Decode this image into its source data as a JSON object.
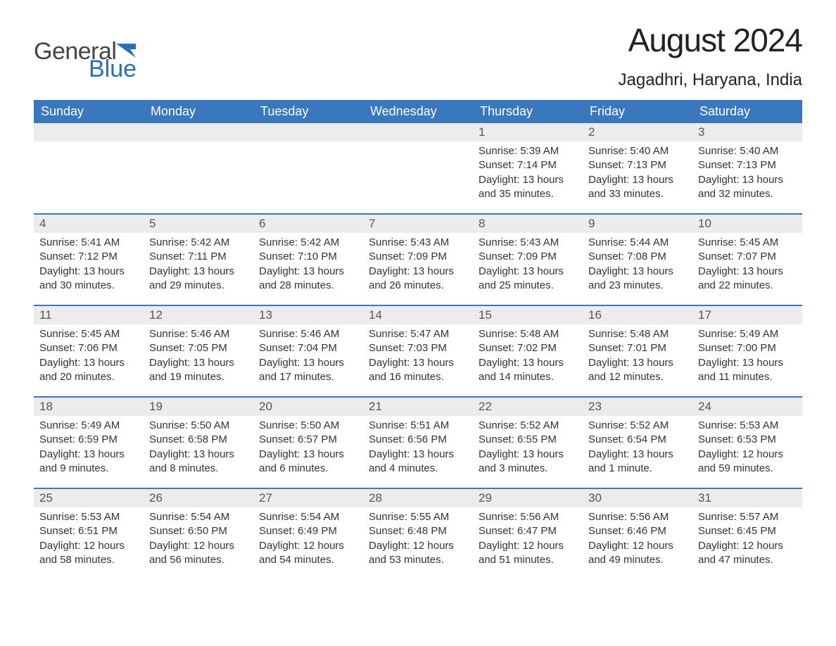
{
  "logo": {
    "text_general": "General",
    "text_blue": "Blue",
    "icon_color": "#2a6db8",
    "text_color": "#444444"
  },
  "header": {
    "month_title": "August 2024",
    "location": "Jagadhri, Haryana, India"
  },
  "colors": {
    "header_bg": "#3a78bd",
    "header_text": "#ffffff",
    "daynum_bg": "#ececec",
    "daynum_text": "#555555",
    "body_text": "#333333",
    "week_divider": "#3a78bd",
    "page_bg": "#ffffff"
  },
  "typography": {
    "month_title_fontsize": 46,
    "location_fontsize": 24,
    "dow_fontsize": 18,
    "daynum_fontsize": 17,
    "body_fontsize": 15
  },
  "layout": {
    "columns": 7,
    "rows": 5
  },
  "days_of_week": [
    "Sunday",
    "Monday",
    "Tuesday",
    "Wednesday",
    "Thursday",
    "Friday",
    "Saturday"
  ],
  "labels": {
    "sunrise_prefix": "Sunrise: ",
    "sunset_prefix": "Sunset: ",
    "daylight_prefix": "Daylight: "
  },
  "weeks": [
    [
      null,
      null,
      null,
      null,
      {
        "day": "1",
        "sunrise": "5:39 AM",
        "sunset": "7:14 PM",
        "daylight": "13 hours and 35 minutes."
      },
      {
        "day": "2",
        "sunrise": "5:40 AM",
        "sunset": "7:13 PM",
        "daylight": "13 hours and 33 minutes."
      },
      {
        "day": "3",
        "sunrise": "5:40 AM",
        "sunset": "7:13 PM",
        "daylight": "13 hours and 32 minutes."
      }
    ],
    [
      {
        "day": "4",
        "sunrise": "5:41 AM",
        "sunset": "7:12 PM",
        "daylight": "13 hours and 30 minutes."
      },
      {
        "day": "5",
        "sunrise": "5:42 AM",
        "sunset": "7:11 PM",
        "daylight": "13 hours and 29 minutes."
      },
      {
        "day": "6",
        "sunrise": "5:42 AM",
        "sunset": "7:10 PM",
        "daylight": "13 hours and 28 minutes."
      },
      {
        "day": "7",
        "sunrise": "5:43 AM",
        "sunset": "7:09 PM",
        "daylight": "13 hours and 26 minutes."
      },
      {
        "day": "8",
        "sunrise": "5:43 AM",
        "sunset": "7:09 PM",
        "daylight": "13 hours and 25 minutes."
      },
      {
        "day": "9",
        "sunrise": "5:44 AM",
        "sunset": "7:08 PM",
        "daylight": "13 hours and 23 minutes."
      },
      {
        "day": "10",
        "sunrise": "5:45 AM",
        "sunset": "7:07 PM",
        "daylight": "13 hours and 22 minutes."
      }
    ],
    [
      {
        "day": "11",
        "sunrise": "5:45 AM",
        "sunset": "7:06 PM",
        "daylight": "13 hours and 20 minutes."
      },
      {
        "day": "12",
        "sunrise": "5:46 AM",
        "sunset": "7:05 PM",
        "daylight": "13 hours and 19 minutes."
      },
      {
        "day": "13",
        "sunrise": "5:46 AM",
        "sunset": "7:04 PM",
        "daylight": "13 hours and 17 minutes."
      },
      {
        "day": "14",
        "sunrise": "5:47 AM",
        "sunset": "7:03 PM",
        "daylight": "13 hours and 16 minutes."
      },
      {
        "day": "15",
        "sunrise": "5:48 AM",
        "sunset": "7:02 PM",
        "daylight": "13 hours and 14 minutes."
      },
      {
        "day": "16",
        "sunrise": "5:48 AM",
        "sunset": "7:01 PM",
        "daylight": "13 hours and 12 minutes."
      },
      {
        "day": "17",
        "sunrise": "5:49 AM",
        "sunset": "7:00 PM",
        "daylight": "13 hours and 11 minutes."
      }
    ],
    [
      {
        "day": "18",
        "sunrise": "5:49 AM",
        "sunset": "6:59 PM",
        "daylight": "13 hours and 9 minutes."
      },
      {
        "day": "19",
        "sunrise": "5:50 AM",
        "sunset": "6:58 PM",
        "daylight": "13 hours and 8 minutes."
      },
      {
        "day": "20",
        "sunrise": "5:50 AM",
        "sunset": "6:57 PM",
        "daylight": "13 hours and 6 minutes."
      },
      {
        "day": "21",
        "sunrise": "5:51 AM",
        "sunset": "6:56 PM",
        "daylight": "13 hours and 4 minutes."
      },
      {
        "day": "22",
        "sunrise": "5:52 AM",
        "sunset": "6:55 PM",
        "daylight": "13 hours and 3 minutes."
      },
      {
        "day": "23",
        "sunrise": "5:52 AM",
        "sunset": "6:54 PM",
        "daylight": "13 hours and 1 minute."
      },
      {
        "day": "24",
        "sunrise": "5:53 AM",
        "sunset": "6:53 PM",
        "daylight": "12 hours and 59 minutes."
      }
    ],
    [
      {
        "day": "25",
        "sunrise": "5:53 AM",
        "sunset": "6:51 PM",
        "daylight": "12 hours and 58 minutes."
      },
      {
        "day": "26",
        "sunrise": "5:54 AM",
        "sunset": "6:50 PM",
        "daylight": "12 hours and 56 minutes."
      },
      {
        "day": "27",
        "sunrise": "5:54 AM",
        "sunset": "6:49 PM",
        "daylight": "12 hours and 54 minutes."
      },
      {
        "day": "28",
        "sunrise": "5:55 AM",
        "sunset": "6:48 PM",
        "daylight": "12 hours and 53 minutes."
      },
      {
        "day": "29",
        "sunrise": "5:56 AM",
        "sunset": "6:47 PM",
        "daylight": "12 hours and 51 minutes."
      },
      {
        "day": "30",
        "sunrise": "5:56 AM",
        "sunset": "6:46 PM",
        "daylight": "12 hours and 49 minutes."
      },
      {
        "day": "31",
        "sunrise": "5:57 AM",
        "sunset": "6:45 PM",
        "daylight": "12 hours and 47 minutes."
      }
    ]
  ]
}
